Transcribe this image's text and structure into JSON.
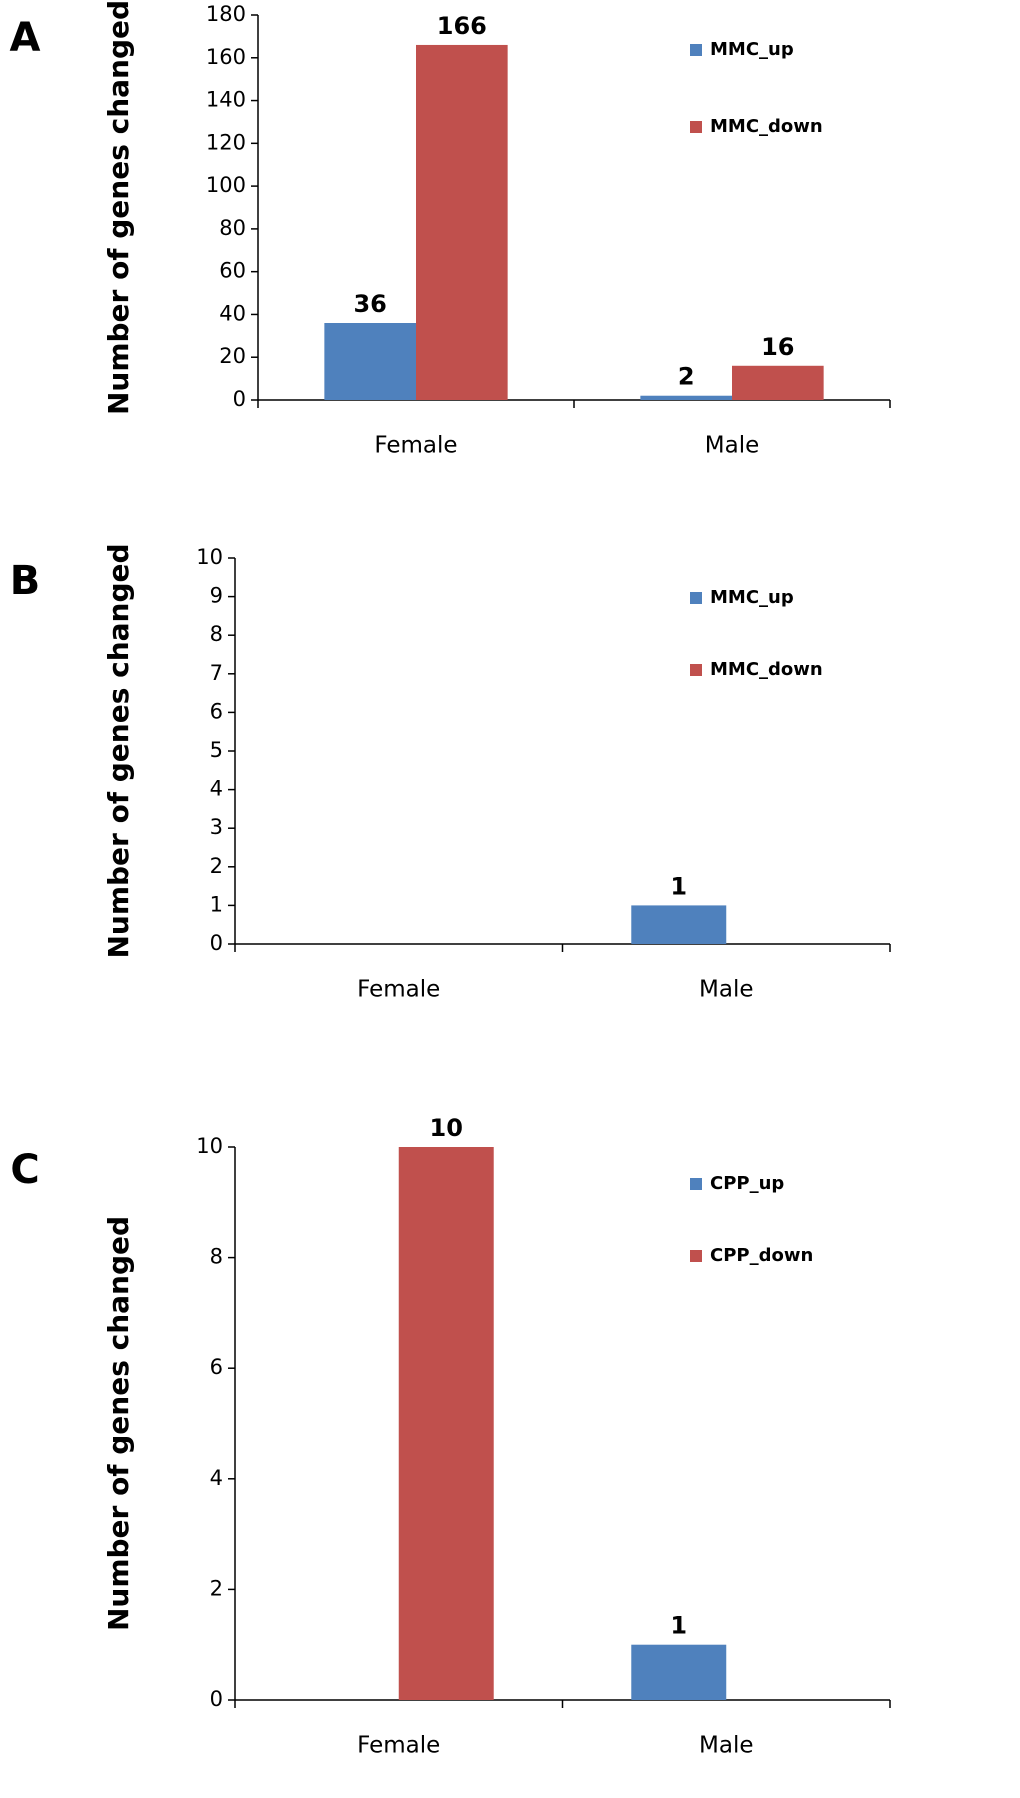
{
  "chart_data": [
    {
      "type": "bar",
      "panel_label": "A",
      "y_label": "Number of genes changed",
      "categories": [
        "Female",
        "Male"
      ],
      "series": [
        {
          "name": "MMC_up",
          "color": "#4f81bd",
          "values": [
            36,
            2
          ]
        },
        {
          "name": "MMC_down",
          "color": "#c0504d",
          "values": [
            166,
            16
          ]
        }
      ],
      "ylim": [
        0,
        180
      ],
      "yticks": [
        0,
        20,
        40,
        60,
        80,
        100,
        120,
        140,
        160,
        180
      ]
    },
    {
      "type": "bar",
      "panel_label": "B",
      "y_label": "Number of genes changed",
      "categories": [
        "Female",
        "Male"
      ],
      "series": [
        {
          "name": "MMC_up",
          "color": "#4f81bd",
          "values": [
            0,
            1
          ],
          "value_labels": [
            null,
            "1"
          ]
        },
        {
          "name": "MMC_down",
          "color": "#c0504d",
          "values": [
            0,
            0
          ],
          "value_labels": [
            null,
            null
          ]
        }
      ],
      "ylim": [
        0,
        10
      ],
      "yticks": [
        0,
        1,
        2,
        3,
        4,
        5,
        6,
        7,
        8,
        9,
        10
      ]
    },
    {
      "type": "bar",
      "panel_label": "C",
      "y_label": "Number of genes changed",
      "categories": [
        "Female",
        "Male"
      ],
      "series": [
        {
          "name": "CPP_up",
          "color": "#4f81bd",
          "values": [
            0,
            1
          ],
          "value_labels": [
            null,
            "1"
          ]
        },
        {
          "name": "CPP_down",
          "color": "#c0504d",
          "values": [
            10,
            0
          ],
          "value_labels": [
            "10",
            null
          ]
        }
      ],
      "ylim": [
        0,
        10
      ],
      "yticks": [
        0,
        2,
        4,
        6,
        8,
        10
      ]
    }
  ]
}
